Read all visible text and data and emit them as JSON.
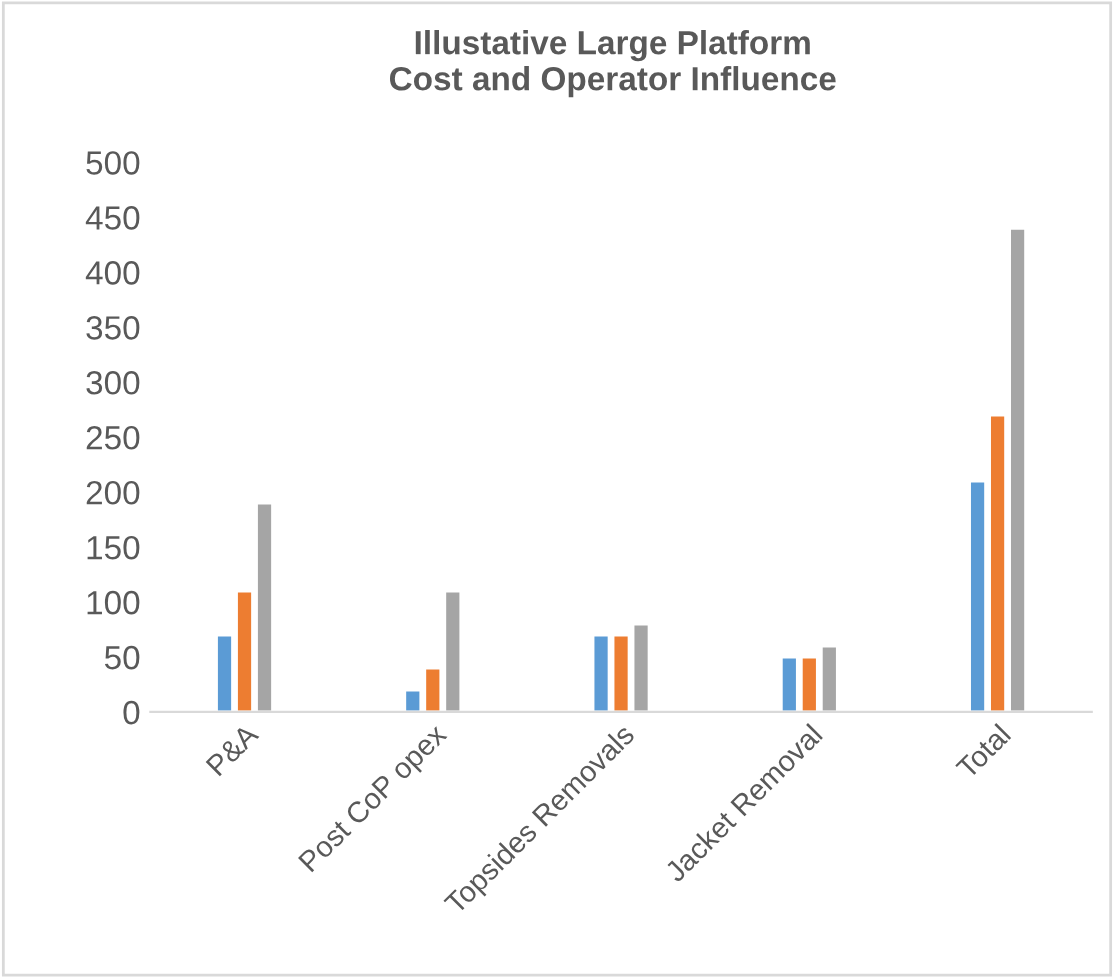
{
  "chart_data": {
    "type": "bar",
    "title": "Illustative Large Platform\nCost and Operator Influence",
    "categories": [
      "P&A",
      "Post CoP opex",
      "Topsides Removals",
      "Jacket Removal",
      "Total"
    ],
    "series": [
      {
        "color": "#5b9bd5",
        "values": [
          70,
          20,
          70,
          50,
          210
        ]
      },
      {
        "color": "#ed7d31",
        "values": [
          110,
          40,
          70,
          50,
          270
        ]
      },
      {
        "color": "#a5a5a5",
        "values": [
          190,
          110,
          80,
          60,
          440
        ]
      }
    ],
    "ylim": [
      0,
      500
    ],
    "yticks": [
      0,
      50,
      100,
      150,
      200,
      250,
      300,
      350,
      400,
      450,
      500
    ],
    "grid": false
  }
}
